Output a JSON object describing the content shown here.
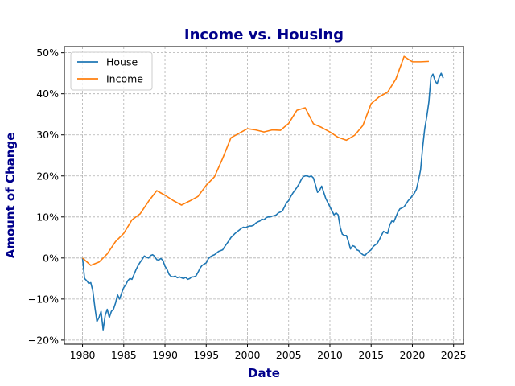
{
  "chart_data": {
    "type": "line",
    "title": "Income vs. Housing",
    "xlabel": "Date",
    "ylabel": "Amount of Change",
    "xlim": [
      1977.8,
      2026.2
    ],
    "ylim": [
      -0.21,
      0.515
    ],
    "x_ticks": [
      1980,
      1985,
      1990,
      1995,
      2000,
      2005,
      2010,
      2015,
      2020,
      2025
    ],
    "y_ticks": [
      -0.2,
      -0.1,
      0,
      0.1,
      0.2,
      0.3,
      0.4,
      0.5
    ],
    "x_tick_labels": [
      "1980",
      "1985",
      "1990",
      "1995",
      "2000",
      "2005",
      "2010",
      "2015",
      "2020",
      "2025"
    ],
    "y_tick_labels": [
      "−20%",
      "−10%",
      "0%",
      "10%",
      "20%",
      "30%",
      "40%",
      "50%"
    ],
    "grid": true,
    "legend_position": "top-left",
    "series": [
      {
        "name": "House",
        "color": "#1f77b4",
        "points": [
          [
            1980.0,
            0.0
          ],
          [
            1980.25,
            -0.05
          ],
          [
            1980.5,
            -0.055
          ],
          [
            1980.75,
            -0.062
          ],
          [
            1981.0,
            -0.06
          ],
          [
            1981.25,
            -0.08
          ],
          [
            1981.5,
            -0.12
          ],
          [
            1981.75,
            -0.155
          ],
          [
            1982.0,
            -0.145
          ],
          [
            1982.25,
            -0.13
          ],
          [
            1982.5,
            -0.175
          ],
          [
            1982.75,
            -0.14
          ],
          [
            1983.0,
            -0.125
          ],
          [
            1983.25,
            -0.145
          ],
          [
            1983.5,
            -0.13
          ],
          [
            1983.75,
            -0.125
          ],
          [
            1984.0,
            -0.11
          ],
          [
            1984.25,
            -0.09
          ],
          [
            1984.5,
            -0.1
          ],
          [
            1984.75,
            -0.085
          ],
          [
            1985.0,
            -0.072
          ],
          [
            1985.25,
            -0.065
          ],
          [
            1985.5,
            -0.055
          ],
          [
            1985.75,
            -0.05
          ],
          [
            1986.0,
            -0.052
          ],
          [
            1986.25,
            -0.04
          ],
          [
            1986.5,
            -0.028
          ],
          [
            1986.75,
            -0.018
          ],
          [
            1987.0,
            -0.01
          ],
          [
            1987.25,
            -0.003
          ],
          [
            1987.5,
            0.005
          ],
          [
            1987.75,
            0.002
          ],
          [
            1988.0,
            0.0
          ],
          [
            1988.25,
            0.006
          ],
          [
            1988.5,
            0.008
          ],
          [
            1988.75,
            0.004
          ],
          [
            1989.0,
            -0.004
          ],
          [
            1989.25,
            -0.005
          ],
          [
            1989.5,
            -0.001
          ],
          [
            1989.75,
            -0.006
          ],
          [
            1990.0,
            -0.02
          ],
          [
            1990.25,
            -0.028
          ],
          [
            1990.5,
            -0.04
          ],
          [
            1990.75,
            -0.045
          ],
          [
            1991.0,
            -0.046
          ],
          [
            1991.25,
            -0.044
          ],
          [
            1991.5,
            -0.048
          ],
          [
            1991.75,
            -0.046
          ],
          [
            1992.0,
            -0.048
          ],
          [
            1992.25,
            -0.05
          ],
          [
            1992.5,
            -0.047
          ],
          [
            1992.75,
            -0.052
          ],
          [
            1993.0,
            -0.05
          ],
          [
            1993.25,
            -0.046
          ],
          [
            1993.5,
            -0.046
          ],
          [
            1993.75,
            -0.044
          ],
          [
            1994.0,
            -0.035
          ],
          [
            1994.25,
            -0.025
          ],
          [
            1994.5,
            -0.018
          ],
          [
            1994.75,
            -0.015
          ],
          [
            1995.0,
            -0.012
          ],
          [
            1995.25,
            -0.002
          ],
          [
            1995.5,
            0.003
          ],
          [
            1995.75,
            0.006
          ],
          [
            1996.0,
            0.008
          ],
          [
            1996.25,
            0.012
          ],
          [
            1996.5,
            0.016
          ],
          [
            1996.75,
            0.018
          ],
          [
            1997.0,
            0.02
          ],
          [
            1997.25,
            0.028
          ],
          [
            1997.5,
            0.035
          ],
          [
            1997.75,
            0.042
          ],
          [
            1998.0,
            0.05
          ],
          [
            1998.25,
            0.055
          ],
          [
            1998.5,
            0.06
          ],
          [
            1998.75,
            0.064
          ],
          [
            1999.0,
            0.068
          ],
          [
            1999.25,
            0.072
          ],
          [
            1999.5,
            0.075
          ],
          [
            1999.75,
            0.074
          ],
          [
            2000.0,
            0.076
          ],
          [
            2000.25,
            0.078
          ],
          [
            2000.5,
            0.078
          ],
          [
            2000.75,
            0.08
          ],
          [
            2001.0,
            0.085
          ],
          [
            2001.25,
            0.088
          ],
          [
            2001.5,
            0.09
          ],
          [
            2001.75,
            0.095
          ],
          [
            2002.0,
            0.093
          ],
          [
            2002.25,
            0.098
          ],
          [
            2002.5,
            0.1
          ],
          [
            2002.75,
            0.1
          ],
          [
            2003.0,
            0.102
          ],
          [
            2003.25,
            0.103
          ],
          [
            2003.5,
            0.105
          ],
          [
            2003.75,
            0.11
          ],
          [
            2004.0,
            0.112
          ],
          [
            2004.25,
            0.115
          ],
          [
            2004.5,
            0.125
          ],
          [
            2004.75,
            0.135
          ],
          [
            2005.0,
            0.14
          ],
          [
            2005.25,
            0.15
          ],
          [
            2005.5,
            0.158
          ],
          [
            2005.75,
            0.165
          ],
          [
            2006.0,
            0.172
          ],
          [
            2006.25,
            0.18
          ],
          [
            2006.5,
            0.19
          ],
          [
            2006.75,
            0.198
          ],
          [
            2007.0,
            0.2
          ],
          [
            2007.25,
            0.2
          ],
          [
            2007.5,
            0.198
          ],
          [
            2007.75,
            0.2
          ],
          [
            2008.0,
            0.195
          ],
          [
            2008.25,
            0.178
          ],
          [
            2008.5,
            0.16
          ],
          [
            2008.75,
            0.165
          ],
          [
            2009.0,
            0.175
          ],
          [
            2009.25,
            0.16
          ],
          [
            2009.5,
            0.145
          ],
          [
            2009.75,
            0.135
          ],
          [
            2010.0,
            0.125
          ],
          [
            2010.25,
            0.115
          ],
          [
            2010.5,
            0.105
          ],
          [
            2010.75,
            0.11
          ],
          [
            2011.0,
            0.105
          ],
          [
            2011.25,
            0.075
          ],
          [
            2011.5,
            0.058
          ],
          [
            2011.75,
            0.055
          ],
          [
            2012.0,
            0.055
          ],
          [
            2012.25,
            0.04
          ],
          [
            2012.5,
            0.022
          ],
          [
            2012.75,
            0.03
          ],
          [
            2013.0,
            0.028
          ],
          [
            2013.25,
            0.02
          ],
          [
            2013.5,
            0.018
          ],
          [
            2013.75,
            0.012
          ],
          [
            2014.0,
            0.008
          ],
          [
            2014.25,
            0.006
          ],
          [
            2014.5,
            0.012
          ],
          [
            2014.75,
            0.016
          ],
          [
            2015.0,
            0.02
          ],
          [
            2015.25,
            0.028
          ],
          [
            2015.5,
            0.032
          ],
          [
            2015.75,
            0.036
          ],
          [
            2016.0,
            0.045
          ],
          [
            2016.25,
            0.055
          ],
          [
            2016.5,
            0.065
          ],
          [
            2016.75,
            0.062
          ],
          [
            2017.0,
            0.06
          ],
          [
            2017.25,
            0.08
          ],
          [
            2017.5,
            0.09
          ],
          [
            2017.75,
            0.088
          ],
          [
            2018.0,
            0.1
          ],
          [
            2018.25,
            0.112
          ],
          [
            2018.5,
            0.12
          ],
          [
            2018.75,
            0.122
          ],
          [
            2019.0,
            0.125
          ],
          [
            2019.25,
            0.132
          ],
          [
            2019.5,
            0.14
          ],
          [
            2019.75,
            0.145
          ],
          [
            2020.0,
            0.152
          ],
          [
            2020.25,
            0.158
          ],
          [
            2020.5,
            0.168
          ],
          [
            2020.75,
            0.19
          ],
          [
            2021.0,
            0.215
          ],
          [
            2021.25,
            0.27
          ],
          [
            2021.5,
            0.315
          ],
          [
            2021.75,
            0.345
          ],
          [
            2022.0,
            0.38
          ],
          [
            2022.25,
            0.44
          ],
          [
            2022.5,
            0.448
          ],
          [
            2022.75,
            0.432
          ],
          [
            2023.0,
            0.424
          ],
          [
            2023.25,
            0.44
          ],
          [
            2023.5,
            0.45
          ],
          [
            2023.75,
            0.438
          ]
        ]
      },
      {
        "name": "Income",
        "color": "#ff7f0e",
        "points": [
          [
            1980,
            0.0
          ],
          [
            1981,
            -0.018
          ],
          [
            1982,
            -0.01
          ],
          [
            1983,
            0.01
          ],
          [
            1984,
            0.04
          ],
          [
            1985,
            0.06
          ],
          [
            1986,
            0.093
          ],
          [
            1987,
            0.108
          ],
          [
            1988,
            0.138
          ],
          [
            1989,
            0.164
          ],
          [
            1990,
            0.153
          ],
          [
            1991,
            0.14
          ],
          [
            1992,
            0.129
          ],
          [
            1993,
            0.139
          ],
          [
            1994,
            0.15
          ],
          [
            1995,
            0.177
          ],
          [
            1996,
            0.198
          ],
          [
            1997,
            0.243
          ],
          [
            1998,
            0.293
          ],
          [
            1999,
            0.304
          ],
          [
            2000,
            0.315
          ],
          [
            2001,
            0.312
          ],
          [
            2002,
            0.307
          ],
          [
            2003,
            0.312
          ],
          [
            2004,
            0.311
          ],
          [
            2005,
            0.328
          ],
          [
            2006,
            0.36
          ],
          [
            2007,
            0.366
          ],
          [
            2008,
            0.327
          ],
          [
            2009,
            0.318
          ],
          [
            2010,
            0.307
          ],
          [
            2011,
            0.294
          ],
          [
            2012,
            0.287
          ],
          [
            2013,
            0.299
          ],
          [
            2014,
            0.323
          ],
          [
            2015,
            0.376
          ],
          [
            2016,
            0.393
          ],
          [
            2017,
            0.404
          ],
          [
            2018,
            0.436
          ],
          [
            2019,
            0.491
          ],
          [
            2020,
            0.478
          ],
          [
            2021,
            0.478
          ],
          [
            2022,
            0.479
          ]
        ]
      }
    ]
  }
}
